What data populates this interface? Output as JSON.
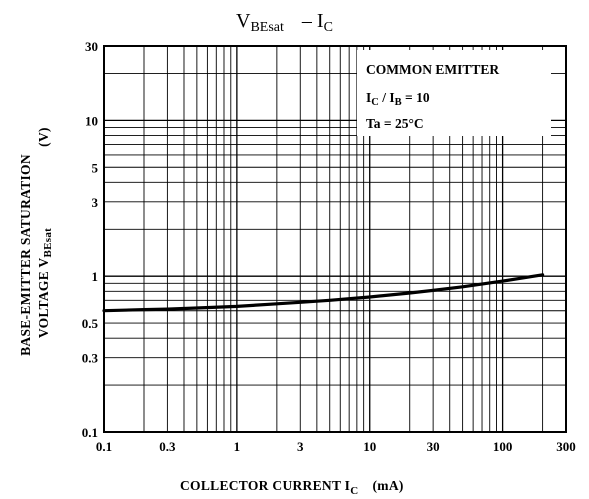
{
  "chart_data": {
    "type": "line",
    "title": {
      "main": "V",
      "main_sub": "BEsat",
      "sep": "– I",
      "sep_sub": "C"
    },
    "xlabel": {
      "text": "COLLECTOR CURRENT  I",
      "sub": "C",
      "unit": "(mA)"
    },
    "ylabel": {
      "line1": "BASE-EMITTER SATURATION",
      "line2_text": "VOLTAGE   V",
      "line2_sub": "BEsat",
      "unit": "(V)"
    },
    "x_scale": "log",
    "y_scale": "log",
    "xlim": [
      0.1,
      300
    ],
    "ylim": [
      0.1,
      30
    ],
    "x_ticks": [
      {
        "value": 0.1,
        "label": "0.1"
      },
      {
        "value": 0.3,
        "label": "0.3"
      },
      {
        "value": 1,
        "label": "1"
      },
      {
        "value": 3,
        "label": "3"
      },
      {
        "value": 10,
        "label": "10"
      },
      {
        "value": 30,
        "label": "30"
      },
      {
        "value": 100,
        "label": "100"
      },
      {
        "value": 300,
        "label": "300"
      }
    ],
    "y_ticks": [
      {
        "value": 0.1,
        "label": "0.1"
      },
      {
        "value": 0.3,
        "label": "0.3"
      },
      {
        "value": 0.5,
        "label": "0.5"
      },
      {
        "value": 1,
        "label": "1"
      },
      {
        "value": 3,
        "label": "3"
      },
      {
        "value": 5,
        "label": "5"
      },
      {
        "value": 10,
        "label": "10"
      },
      {
        "value": 30,
        "label": "30"
      }
    ],
    "grid": true,
    "annotation": {
      "line1": "COMMON EMITTER",
      "line2": {
        "a": "I",
        "a_sub": "C",
        "sep": " / I",
        "b_sub": "B",
        "rest": " = 10"
      },
      "line3": "Ta = 25°C"
    },
    "series": [
      {
        "x": [
          0.1,
          0.2,
          0.3,
          0.5,
          1,
          2,
          3,
          5,
          10,
          20,
          30,
          50,
          100,
          200
        ],
        "y": [
          0.6,
          0.61,
          0.615,
          0.625,
          0.64,
          0.665,
          0.68,
          0.7,
          0.735,
          0.78,
          0.81,
          0.855,
          0.93,
          1.02
        ]
      }
    ],
    "colors": {
      "line": "#000000",
      "grid": "#000000",
      "background": "#ffffff"
    }
  }
}
